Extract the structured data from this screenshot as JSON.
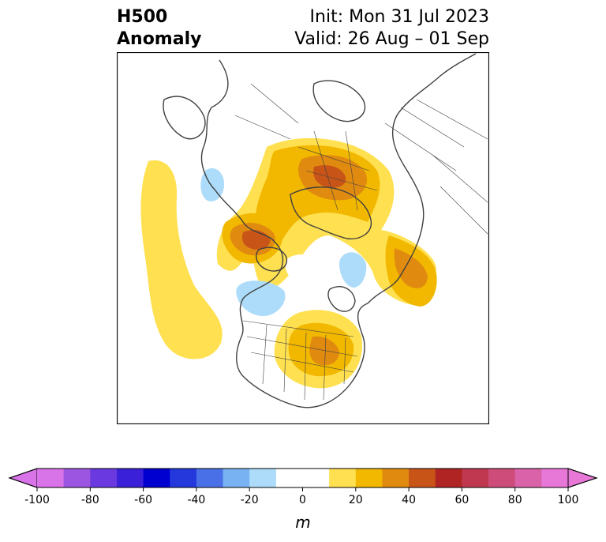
{
  "title": {
    "left_line1": "H500",
    "left_line2": "Anomaly",
    "right_line1": "Init: Mon 31 Jul 2023",
    "right_line2": "Valid: 26 Aug – 01 Sep"
  },
  "colorbar": {
    "unit_label": "m",
    "ticks": [
      "-100",
      "-80",
      "-60",
      "-40",
      "-20",
      "0",
      "20",
      "40",
      "60",
      "80",
      "100"
    ],
    "colors": [
      "#d873e8",
      "#9b55e0",
      "#6a3ae0",
      "#3a20d8",
      "#0000d0",
      "#2438dc",
      "#4a70e8",
      "#78b2f2",
      "#acdcfa",
      "#ffffff",
      "#ffffff",
      "#ffe050",
      "#f2b800",
      "#e08a10",
      "#c85418",
      "#b02424",
      "#c03850",
      "#ce4c7a",
      "#da62a8",
      "#e878d8"
    ],
    "extend": "both"
  }
}
